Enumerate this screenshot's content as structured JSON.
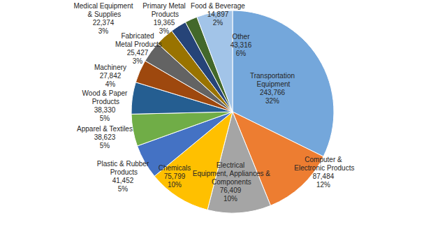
{
  "chart_data": {
    "type": "pie",
    "categories": [
      "Transportation Equipment",
      "Computer & Electronic Products",
      "Electrical Equipment, Appliances & Components",
      "Chemicals",
      "Plastic & Rubber Products",
      "Apparel & Textiles",
      "Wood & Paper Products",
      "Machinery",
      "Fabricated Metal Products",
      "Medical Equipment & Supplies",
      "Primary Metal Products",
      "Food & Beverage",
      "Other"
    ],
    "values": [
      243766,
      87484,
      76409,
      75799,
      41452,
      38623,
      38330,
      27842,
      25427,
      22374,
      19365,
      14897,
      43316
    ],
    "value_labels": [
      "243,766",
      "87,484",
      "76,409",
      "75,799",
      "41,452",
      "38,623",
      "38,330",
      "27,842",
      "25,427",
      "22,374",
      "19,365",
      "14,897",
      "43,316"
    ],
    "percent_labels": [
      "32%",
      "12%",
      "10%",
      "10%",
      "5%",
      "5%",
      "5%",
      "4%",
      "3%",
      "3%",
      "3%",
      "2%",
      "6%"
    ],
    "colors": [
      "#74a7db",
      "#ed7d31",
      "#a5a5a5",
      "#ffc000",
      "#4472c4",
      "#70ad47",
      "#255e91",
      "#9e480e",
      "#636363",
      "#997300",
      "#264478",
      "#43682b",
      "#a2c4e8"
    ],
    "data_labels": true
  }
}
